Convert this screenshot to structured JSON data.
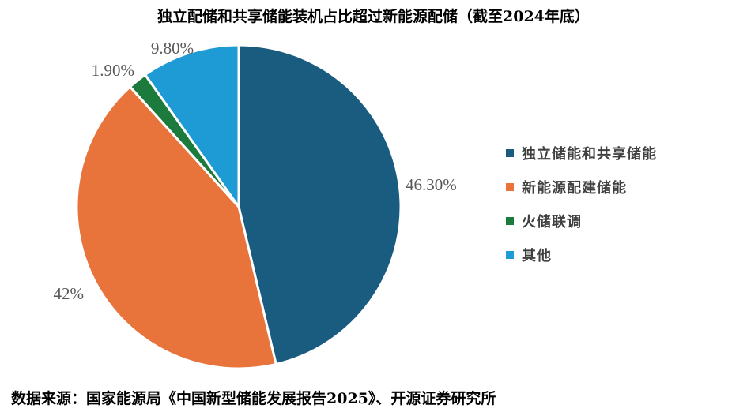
{
  "title": "独立配储和共享储能装机占比超过新能源配储（截至2024年底）",
  "source": "数据来源：国家能源局《中国新型储能发展报告2025》、开源证券研究所",
  "chart_data": {
    "type": "pie",
    "title": "独立配储和共享储能装机占比超过新能源配储（截至2024年底）",
    "categories": [
      "独立储能和共享储能",
      "新能源配建储能",
      "火储联调",
      "其他"
    ],
    "values": [
      46.3,
      42,
      1.9,
      9.8
    ],
    "data_labels": [
      "46.30%",
      "42%",
      "1.90%",
      "9.80%"
    ],
    "colors": [
      "#1a5c80",
      "#e8743b",
      "#1c7a3c",
      "#1e9ad4"
    ],
    "legend_position": "right",
    "start_angle": "12 o'clock, clockwise"
  }
}
